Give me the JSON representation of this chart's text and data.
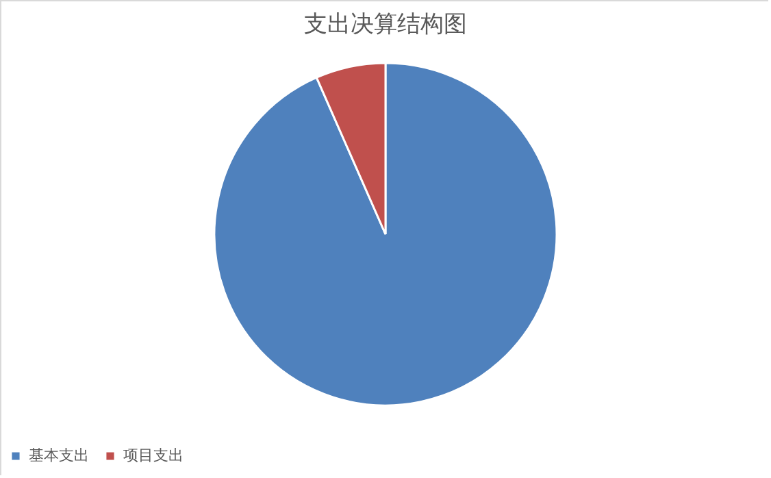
{
  "chart_data": {
    "type": "pie",
    "title": "支出决算结构图",
    "categories": [
      "基本支出",
      "项目支出"
    ],
    "values": [
      93.4,
      6.6
    ],
    "colors": [
      "#4f81bd",
      "#c0504d"
    ],
    "legend": "bottom"
  }
}
